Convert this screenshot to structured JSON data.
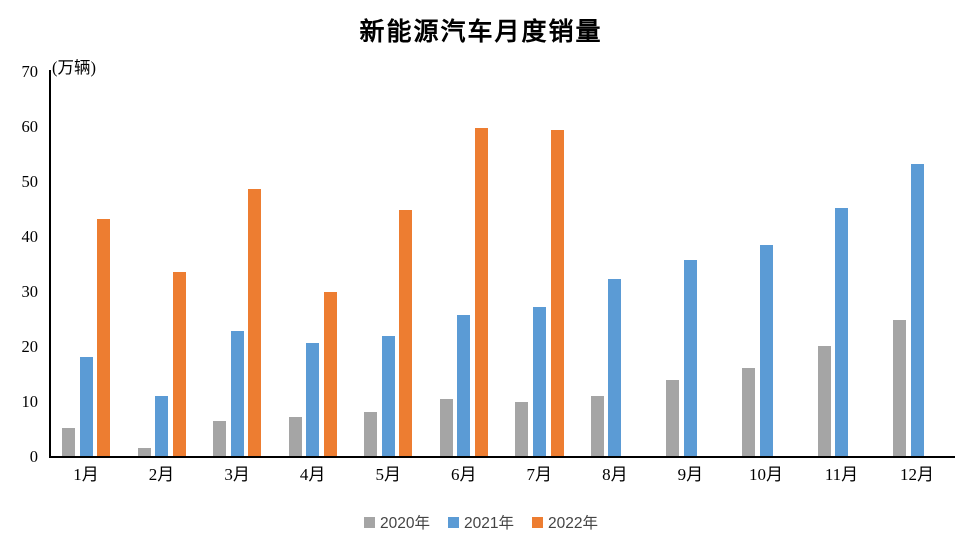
{
  "chart_data": {
    "type": "bar",
    "title": "新能源汽车月度销量",
    "ylabel": "(万辆)",
    "xlabel": "",
    "categories": [
      "1月",
      "2月",
      "3月",
      "4月",
      "5月",
      "6月",
      "7月",
      "8月",
      "9月",
      "10月",
      "11月",
      "12月"
    ],
    "series": [
      {
        "name": "2020年",
        "color": "#A5A5A5",
        "values": [
          5.1,
          1.5,
          6.3,
          7.1,
          8.0,
          10.4,
          9.8,
          11.0,
          13.9,
          16.0,
          20.0,
          24.8
        ]
      },
      {
        "name": "2021年",
        "color": "#5B9BD5",
        "values": [
          18.0,
          11.0,
          22.7,
          20.6,
          21.8,
          25.6,
          27.1,
          32.1,
          35.7,
          38.4,
          45.1,
          53.1
        ]
      },
      {
        "name": "2022年",
        "color": "#ED7D31",
        "values": [
          43.1,
          33.4,
          48.5,
          29.9,
          44.7,
          59.7,
          59.3,
          null,
          null,
          null,
          null,
          null
        ]
      }
    ],
    "ylim": [
      0,
      70
    ],
    "yticks": [
      0,
      10,
      20,
      30,
      40,
      50,
      60,
      70
    ],
    "grid": false,
    "legend_position": "bottom",
    "axis_color": "#000000",
    "legend_text_color": "#444444"
  }
}
